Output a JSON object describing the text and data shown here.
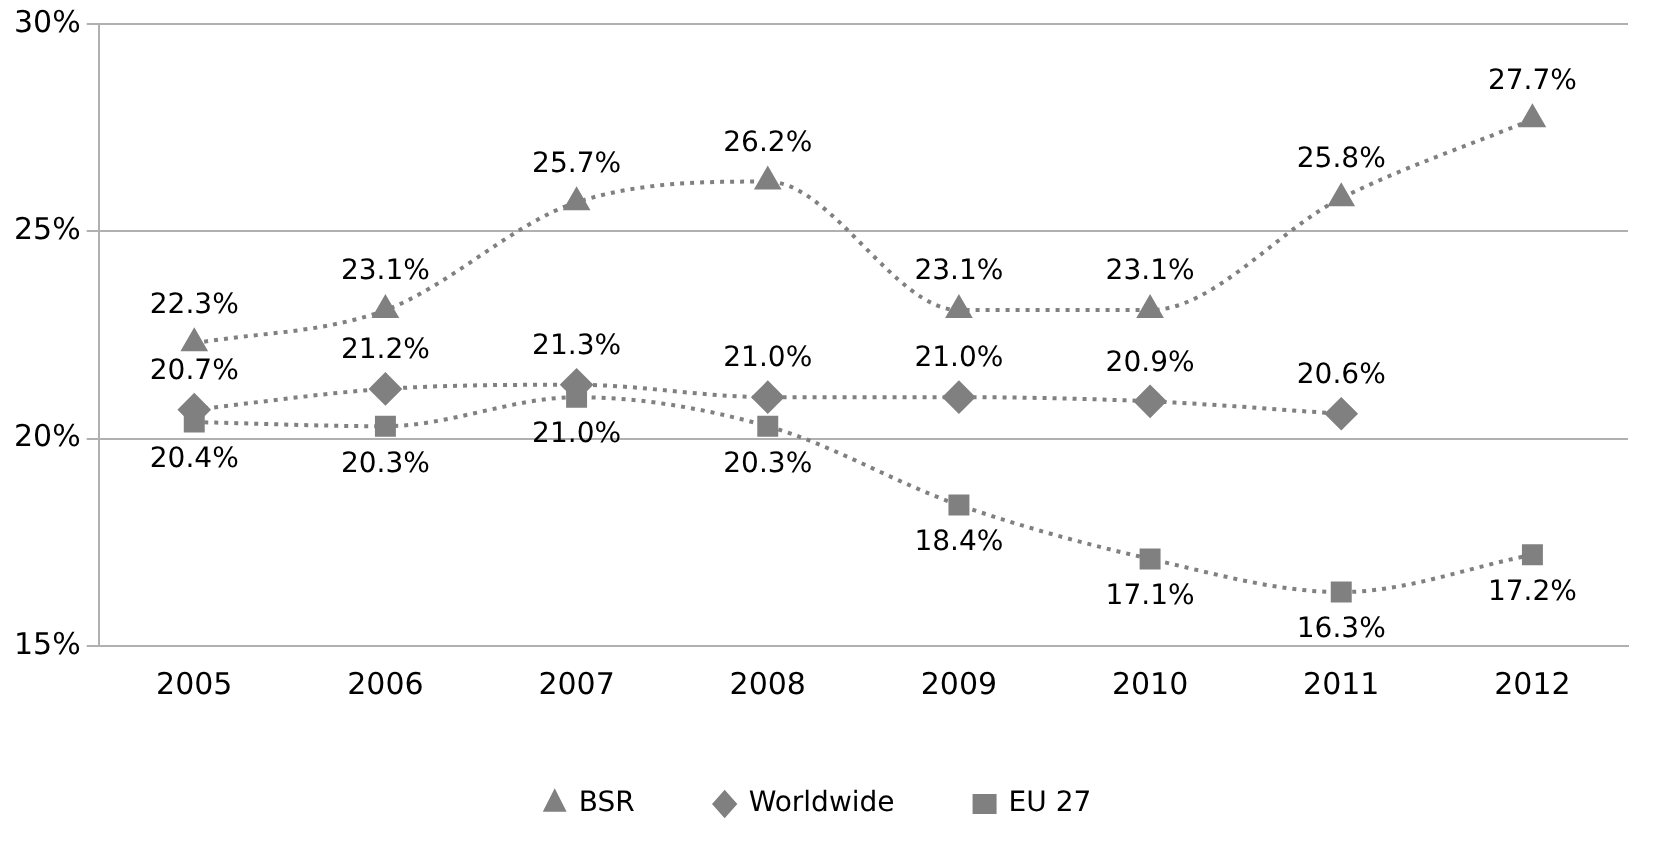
{
  "chart_data": {
    "type": "line",
    "categories": [
      "2005",
      "2006",
      "2007",
      "2008",
      "2009",
      "2010",
      "2011",
      "2012"
    ],
    "series": [
      {
        "name": "BSR",
        "color": "#808080",
        "marker": "triangle",
        "values": [
          22.3,
          23.1,
          25.7,
          26.2,
          23.1,
          23.1,
          25.8,
          27.7
        ],
        "value_labels": [
          "22.3%",
          "23.1%",
          "25.7%",
          "26.2%",
          "23.1%",
          "23.1%",
          "25.8%",
          "27.7%"
        ]
      },
      {
        "name": "Worldwide",
        "color": "#808080",
        "marker": "diamond",
        "values": [
          20.7,
          21.2,
          21.3,
          21.0,
          21.0,
          20.9,
          20.6,
          null
        ],
        "value_labels": [
          "20.7%",
          "21.2%",
          "21.3%",
          "21.0%",
          "21.0%",
          "20.9%",
          "20.6%",
          null
        ]
      },
      {
        "name": "EU 27",
        "color": "#808080",
        "marker": "square",
        "values": [
          20.4,
          20.3,
          21.0,
          20.3,
          18.4,
          17.1,
          16.3,
          17.2
        ],
        "value_labels": [
          "20.4%",
          "20.3%",
          "21.0%",
          "20.3%",
          "18.4%",
          "17.1%",
          "16.3%",
          "17.2%"
        ]
      }
    ],
    "ylim": [
      15,
      30
    ],
    "yticks": [
      {
        "value": 15,
        "label": "15%"
      },
      {
        "value": 20,
        "label": "20%"
      },
      {
        "value": 25,
        "label": "25%"
      },
      {
        "value": 30,
        "label": "30%"
      }
    ],
    "grid": "y",
    "legend": "bottom",
    "line_style": "dotted"
  }
}
